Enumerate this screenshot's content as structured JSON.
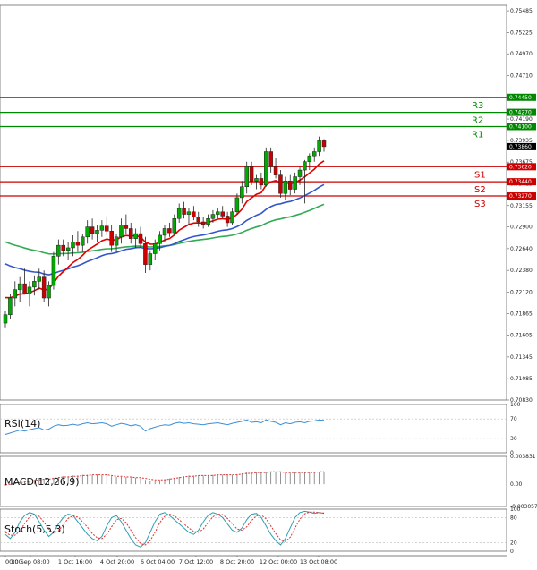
{
  "chart_data": {
    "type": "candlestick",
    "colors": {
      "up": "#00aa00",
      "down": "#cc0000",
      "ema_fast": "#e00000",
      "ema_mid": "#3355cc",
      "ema_slow": "#33aa55",
      "rsi": "#3a8fd8",
      "res": "#008800",
      "sup": "#cc0000",
      "current": "#000000"
    },
    "price_axis": {
      "min": 0.7083,
      "max": 0.7555,
      "ticks": [
        "0.75485",
        "0.75225",
        "0.74970",
        "0.74710",
        "0.74450",
        "0.74190",
        "0.73935",
        "0.73675",
        "0.73415",
        "0.73155",
        "0.72900",
        "0.72640",
        "0.72380",
        "0.72120",
        "0.71865",
        "0.71605",
        "0.71345",
        "0.71085",
        "0.70830"
      ]
    },
    "levels": [
      {
        "name": "R3",
        "value": 0.7445,
        "tag": "0.74450",
        "kind": "res"
      },
      {
        "name": "R2",
        "value": 0.7427,
        "tag": "0.74270",
        "kind": "res"
      },
      {
        "name": "R1",
        "value": 0.741,
        "tag": "0.74100",
        "kind": "res"
      },
      {
        "name": "S1",
        "value": 0.7362,
        "tag": "0.73620",
        "kind": "sup"
      },
      {
        "name": "S2",
        "value": 0.7344,
        "tag": "0.73440",
        "kind": "sup"
      },
      {
        "name": "S3",
        "value": 0.7327,
        "tag": "0.73270",
        "kind": "sup"
      }
    ],
    "current_price": {
      "value": 0.7386,
      "tag": "0.73860"
    },
    "x_labels": [
      "00:00",
      "30 Sep 08:00",
      "1 Oct 16:00",
      "4 Oct 20:00",
      "6 Oct 04:00",
      "7 Oct 12:00",
      "8 Oct 20:00",
      "12 Oct 00:00",
      "13 Oct 08:00"
    ],
    "candles": [
      [
        0.7175,
        0.719,
        0.717,
        0.7185
      ],
      [
        0.7185,
        0.721,
        0.718,
        0.7205
      ],
      [
        0.7205,
        0.7225,
        0.7195,
        0.7215
      ],
      [
        0.7215,
        0.723,
        0.72,
        0.7222
      ],
      [
        0.7222,
        0.724,
        0.721,
        0.721
      ],
      [
        0.721,
        0.7225,
        0.7195,
        0.7218
      ],
      [
        0.7218,
        0.7232,
        0.7208,
        0.7225
      ],
      [
        0.7225,
        0.724,
        0.7215,
        0.723
      ],
      [
        0.723,
        0.7238,
        0.72,
        0.7205
      ],
      [
        0.7205,
        0.7225,
        0.7195,
        0.722
      ],
      [
        0.722,
        0.726,
        0.7215,
        0.7255
      ],
      [
        0.7255,
        0.7275,
        0.7245,
        0.7268
      ],
      [
        0.7268,
        0.7275,
        0.7255,
        0.7262
      ],
      [
        0.7262,
        0.7272,
        0.725,
        0.7265
      ],
      [
        0.7265,
        0.728,
        0.7255,
        0.7272
      ],
      [
        0.7272,
        0.7285,
        0.726,
        0.7268
      ],
      [
        0.7268,
        0.7282,
        0.726,
        0.7278
      ],
      [
        0.7278,
        0.7298,
        0.727,
        0.729
      ],
      [
        0.729,
        0.73,
        0.7275,
        0.7282
      ],
      [
        0.7282,
        0.7292,
        0.7272,
        0.7286
      ],
      [
        0.7286,
        0.7298,
        0.7278,
        0.7291
      ],
      [
        0.7291,
        0.7302,
        0.728,
        0.7285
      ],
      [
        0.7285,
        0.7292,
        0.726,
        0.7268
      ],
      [
        0.7268,
        0.7282,
        0.726,
        0.7278
      ],
      [
        0.7278,
        0.73,
        0.727,
        0.7292
      ],
      [
        0.7292,
        0.7305,
        0.7282,
        0.7288
      ],
      [
        0.7288,
        0.7295,
        0.727,
        0.7276
      ],
      [
        0.7276,
        0.7288,
        0.7265,
        0.7282
      ],
      [
        0.7282,
        0.729,
        0.7265,
        0.727
      ],
      [
        0.727,
        0.7278,
        0.7235,
        0.7245
      ],
      [
        0.7245,
        0.7262,
        0.7238,
        0.7258
      ],
      [
        0.7258,
        0.7275,
        0.725,
        0.727
      ],
      [
        0.727,
        0.7285,
        0.7262,
        0.728
      ],
      [
        0.728,
        0.7292,
        0.7272,
        0.7288
      ],
      [
        0.7288,
        0.7295,
        0.7278,
        0.7283
      ],
      [
        0.7283,
        0.7305,
        0.728,
        0.73
      ],
      [
        0.73,
        0.7318,
        0.7295,
        0.7312
      ],
      [
        0.7312,
        0.732,
        0.73,
        0.7305
      ],
      [
        0.7305,
        0.7312,
        0.7292,
        0.7308
      ],
      [
        0.7308,
        0.7315,
        0.7298,
        0.7302
      ],
      [
        0.7302,
        0.7308,
        0.729,
        0.7296
      ],
      [
        0.7296,
        0.7302,
        0.7288,
        0.7293
      ],
      [
        0.7293,
        0.7305,
        0.729,
        0.73
      ],
      [
        0.73,
        0.731,
        0.7295,
        0.7305
      ],
      [
        0.7305,
        0.7312,
        0.73,
        0.7308
      ],
      [
        0.7308,
        0.7315,
        0.73,
        0.7303
      ],
      [
        0.7303,
        0.7308,
        0.729,
        0.7295
      ],
      [
        0.7295,
        0.7312,
        0.7292,
        0.7308
      ],
      [
        0.7308,
        0.733,
        0.7305,
        0.7325
      ],
      [
        0.7325,
        0.7345,
        0.7318,
        0.7338
      ],
      [
        0.7338,
        0.7368,
        0.733,
        0.7362
      ],
      [
        0.7362,
        0.7368,
        0.734,
        0.7345
      ],
      [
        0.7345,
        0.7352,
        0.7335,
        0.7348
      ],
      [
        0.7348,
        0.7355,
        0.7335,
        0.734
      ],
      [
        0.734,
        0.7385,
        0.7338,
        0.738
      ],
      [
        0.738,
        0.7385,
        0.7355,
        0.7362
      ],
      [
        0.7362,
        0.7372,
        0.7348,
        0.7352
      ],
      [
        0.7352,
        0.7358,
        0.7325,
        0.733
      ],
      [
        0.733,
        0.735,
        0.7322,
        0.7345
      ],
      [
        0.7345,
        0.7352,
        0.7328,
        0.7335
      ],
      [
        0.7335,
        0.7355,
        0.733,
        0.735
      ],
      [
        0.735,
        0.7362,
        0.734,
        0.7358
      ],
      [
        0.7358,
        0.737,
        0.7318,
        0.7368
      ],
      [
        0.7368,
        0.7378,
        0.7358,
        0.7375
      ],
      [
        0.7375,
        0.7385,
        0.7368,
        0.738
      ],
      [
        0.738,
        0.7398,
        0.7375,
        0.7393
      ],
      [
        0.7393,
        0.7395,
        0.738,
        0.7386
      ]
    ],
    "indicators": {
      "rsi": {
        "label": "RSI(14)",
        "min": 0,
        "max": 100,
        "ticks": [
          "100",
          "70",
          "30",
          "0"
        ],
        "values": [
          38,
          41,
          44,
          47,
          45,
          48,
          50,
          52,
          47,
          49,
          55,
          58,
          56,
          57,
          59,
          57,
          60,
          62,
          60,
          61,
          62,
          60,
          55,
          58,
          61,
          59,
          56,
          58,
          55,
          45,
          50,
          53,
          56,
          58,
          57,
          61,
          63,
          61,
          62,
          60,
          59,
          58,
          60,
          61,
          62,
          60,
          58,
          61,
          63,
          65,
          68,
          63,
          64,
          62,
          68,
          65,
          63,
          58,
          62,
          60,
          63,
          64,
          62,
          65,
          66,
          68,
          67
        ]
      },
      "macd": {
        "label": "MACD(12,26,9)",
        "min": -0.003057,
        "max": 0.003831,
        "ticks": [
          "0.003831",
          "0.00",
          "-0.003057"
        ],
        "hist": [
          -0.0002,
          -0.0001,
          0.0001,
          0.0003,
          0.0004,
          0.0005,
          0.0006,
          0.0007,
          0.0007,
          0.0008,
          0.0009,
          0.001,
          0.0011,
          0.0011,
          0.0012,
          0.0012,
          0.0013,
          0.0013,
          0.0013,
          0.0013,
          0.0013,
          0.0012,
          0.0011,
          0.001,
          0.001,
          0.001,
          0.0009,
          0.0009,
          0.0008,
          0.0006,
          0.0005,
          0.0005,
          0.0006,
          0.0007,
          0.0008,
          0.0009,
          0.001,
          0.0011,
          0.0012,
          0.0012,
          0.0012,
          0.0012,
          0.0012,
          0.0013,
          0.0013,
          0.0013,
          0.0013,
          0.0013,
          0.0014,
          0.0015,
          0.0016,
          0.0016,
          0.0016,
          0.0016,
          0.0017,
          0.0017,
          0.0017,
          0.0016,
          0.0016,
          0.0016,
          0.0016,
          0.0016,
          0.0016,
          0.0016,
          0.0017,
          0.0017,
          0.0017
        ],
        "signal": [
          -0.0001,
          0.0,
          0.0001,
          0.0002,
          0.0003,
          0.0004,
          0.0005,
          0.0006,
          0.0007,
          0.0007,
          0.0008,
          0.0009,
          0.001,
          0.001,
          0.0011,
          0.0011,
          0.0012,
          0.0012,
          0.0013,
          0.0013,
          0.0013,
          0.0013,
          0.0012,
          0.0011,
          0.0011,
          0.001,
          0.001,
          0.0009,
          0.0009,
          0.0008,
          0.0007,
          0.0006,
          0.0006,
          0.0006,
          0.0007,
          0.0008,
          0.0009,
          0.001,
          0.0011,
          0.0011,
          0.0012,
          0.0012,
          0.0012,
          0.0012,
          0.0013,
          0.0013,
          0.0013,
          0.0013,
          0.0013,
          0.0014,
          0.0015,
          0.0015,
          0.0016,
          0.0016,
          0.0016,
          0.0017,
          0.0017,
          0.0017,
          0.0016,
          0.0016,
          0.0016,
          0.0016,
          0.0016,
          0.0016,
          0.0016,
          0.0017,
          0.0017
        ]
      },
      "stoch": {
        "label": "Stoch(5,5,3)",
        "min": 0,
        "max": 100,
        "ticks": [
          "100",
          "80",
          "20",
          "0"
        ],
        "k": [
          40,
          30,
          45,
          70,
          85,
          92,
          88,
          70,
          50,
          35,
          45,
          65,
          80,
          88,
          85,
          70,
          55,
          40,
          30,
          25,
          35,
          60,
          80,
          85,
          70,
          50,
          30,
          15,
          10,
          20,
          45,
          70,
          88,
          92,
          85,
          75,
          65,
          55,
          45,
          40,
          50,
          70,
          85,
          92,
          88,
          80,
          65,
          50,
          45,
          55,
          75,
          88,
          90,
          80,
          60,
          40,
          25,
          15,
          30,
          55,
          80,
          92,
          95,
          93,
          90,
          92,
          90
        ],
        "d": [
          45,
          38,
          38,
          48,
          66,
          82,
          88,
          83,
          69,
          52,
          43,
          48,
          63,
          78,
          84,
          81,
          70,
          57,
          42,
          32,
          30,
          40,
          58,
          75,
          78,
          68,
          50,
          32,
          18,
          15,
          25,
          45,
          68,
          83,
          88,
          84,
          75,
          65,
          55,
          47,
          45,
          53,
          68,
          82,
          88,
          87,
          78,
          65,
          53,
          50,
          58,
          73,
          84,
          86,
          77,
          60,
          42,
          27,
          23,
          33,
          55,
          76,
          89,
          93,
          93,
          92,
          91
        ]
      }
    }
  }
}
